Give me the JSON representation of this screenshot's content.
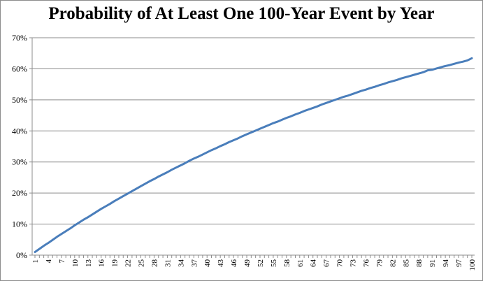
{
  "chart_data": {
    "type": "line",
    "title": "Probability of At Least One 100-Year Event by Year",
    "xlabel": "",
    "ylabel": "",
    "ylim": [
      0,
      70
    ],
    "y_ticks": [
      "0%",
      "10%",
      "20%",
      "30%",
      "40%",
      "50%",
      "60%",
      "70%"
    ],
    "x_tick_labels": [
      "1",
      "4",
      "7",
      "10",
      "13",
      "16",
      "19",
      "22",
      "25",
      "28",
      "31",
      "34",
      "37",
      "40",
      "43",
      "46",
      "49",
      "52",
      "55",
      "58",
      "61",
      "64",
      "67",
      "70",
      "73",
      "76",
      "79",
      "82",
      "85",
      "88",
      "91",
      "94",
      "97",
      "100"
    ],
    "grid": true,
    "legend": "none",
    "line_color": "#4a7ebb",
    "series": [
      {
        "x": [
          1,
          2,
          3,
          4,
          5,
          6,
          7,
          8,
          9,
          10,
          11,
          12,
          13,
          14,
          15,
          16,
          17,
          18,
          19,
          20,
          21,
          22,
          23,
          24,
          25,
          26,
          27,
          28,
          29,
          30,
          31,
          32,
          33,
          34,
          35,
          36,
          37,
          38,
          39,
          40,
          41,
          42,
          43,
          44,
          45,
          46,
          47,
          48,
          49,
          50,
          51,
          52,
          53,
          54,
          55,
          56,
          57,
          58,
          59,
          60,
          61,
          62,
          63,
          64,
          65,
          66,
          67,
          68,
          69,
          70,
          71,
          72,
          73,
          74,
          75,
          76,
          77,
          78,
          79,
          80,
          81,
          82,
          83,
          84,
          85,
          86,
          87,
          88,
          89,
          90,
          91,
          92,
          93,
          94,
          95,
          96,
          97,
          98,
          99,
          100
        ],
        "values": [
          1.0,
          2.0,
          3.0,
          3.9,
          4.9,
          5.9,
          6.8,
          7.7,
          8.6,
          9.6,
          10.5,
          11.4,
          12.2,
          13.1,
          14.0,
          14.9,
          15.7,
          16.5,
          17.4,
          18.2,
          19.0,
          19.8,
          20.6,
          21.4,
          22.2,
          23.0,
          23.8,
          24.5,
          25.3,
          26.0,
          26.7,
          27.5,
          28.2,
          28.9,
          29.6,
          30.4,
          31.1,
          31.7,
          32.4,
          33.1,
          33.8,
          34.4,
          35.1,
          35.7,
          36.4,
          37.0,
          37.6,
          38.3,
          38.9,
          39.5,
          40.1,
          40.7,
          41.3,
          41.9,
          42.5,
          43.0,
          43.6,
          44.2,
          44.7,
          45.3,
          45.8,
          46.4,
          46.9,
          47.4,
          47.9,
          48.5,
          49.0,
          49.5,
          50.0,
          50.5,
          51.0,
          51.4,
          51.9,
          52.4,
          52.9,
          53.3,
          53.8,
          54.2,
          54.7,
          55.1,
          55.6,
          56.0,
          56.4,
          56.9,
          57.3,
          57.7,
          58.1,
          58.5,
          58.9,
          59.5,
          59.7,
          60.1,
          60.5,
          60.9,
          61.2,
          61.6,
          62.0,
          62.3,
          62.7,
          63.4
        ]
      }
    ]
  }
}
